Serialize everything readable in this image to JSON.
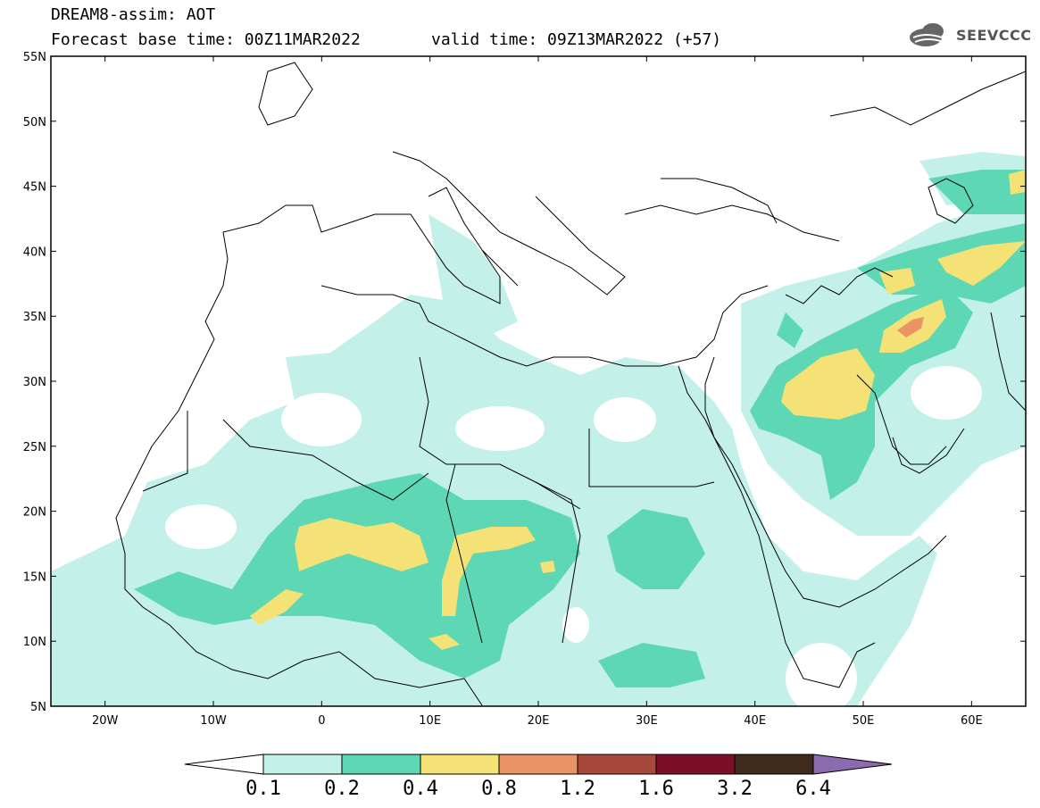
{
  "header": {
    "title": "DREAM8-assim: AOT",
    "base_time": "Forecast base time: 00Z11MAR2022",
    "valid_time": "valid time: 09Z13MAR2022 (+57)",
    "logo_text": "SEEVCCC"
  },
  "map": {
    "lat_labels": [
      "55N",
      "50N",
      "45N",
      "40N",
      "35N",
      "30N",
      "25N",
      "20N",
      "15N",
      "10N",
      "5N"
    ],
    "lon_labels": [
      "20W",
      "10W",
      "0",
      "10E",
      "20E",
      "30E",
      "40E",
      "50E",
      "60E"
    ],
    "lat_range": [
      5,
      55
    ],
    "lon_range": [
      -25,
      65
    ]
  },
  "colorbar": {
    "levels": [
      "0.1",
      "0.2",
      "0.4",
      "0.8",
      "1.2",
      "1.6",
      "3.2",
      "6.4"
    ],
    "colors": [
      "#ffffff",
      "#c4f0ea",
      "#5ed7b4",
      "#f4e276",
      "#ea9465",
      "#a8473c",
      "#7b0f2a",
      "#3f2a1b",
      "#8c6ab0"
    ]
  }
}
